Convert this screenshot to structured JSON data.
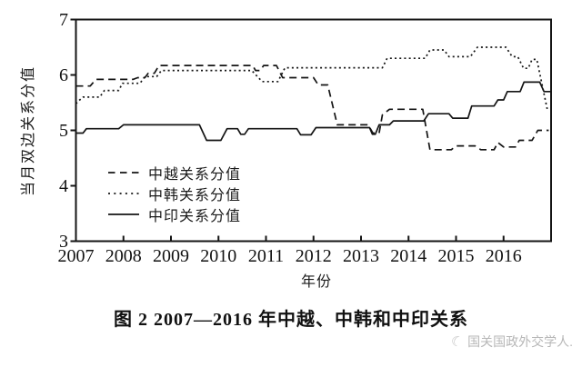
{
  "figure": {
    "caption": "图 2  2007—2016 年中越、中韩和中印关系"
  },
  "watermark": {
    "logo": "moon-icon",
    "text": "国关国政外交学人."
  },
  "chart_data": {
    "type": "line",
    "title": "",
    "xlabel": "年份",
    "ylabel": "当月双边关系分值",
    "xlim": [
      2007,
      2017
    ],
    "ylim": [
      3,
      7
    ],
    "x_ticks": [
      2007,
      2008,
      2009,
      2010,
      2011,
      2012,
      2013,
      2014,
      2015,
      2016
    ],
    "y_ticks": [
      3,
      4,
      5,
      6,
      7
    ],
    "grid": false,
    "legend_position": "inside-lower-left",
    "line_color": "#141414",
    "series": [
      {
        "name": "中越关系分值",
        "style": "dashed",
        "points": [
          [
            2007.0,
            5.8
          ],
          [
            2007.3,
            5.8
          ],
          [
            2007.42,
            5.92
          ],
          [
            2008.2,
            5.92
          ],
          [
            2008.3,
            5.95
          ],
          [
            2008.45,
            5.95
          ],
          [
            2008.52,
            6.03
          ],
          [
            2008.65,
            6.03
          ],
          [
            2008.75,
            6.17
          ],
          [
            2010.72,
            6.17
          ],
          [
            2010.78,
            6.08
          ],
          [
            2010.88,
            6.08
          ],
          [
            2010.95,
            6.17
          ],
          [
            2011.22,
            6.17
          ],
          [
            2011.35,
            5.95
          ],
          [
            2012.0,
            5.95
          ],
          [
            2012.1,
            5.82
          ],
          [
            2012.3,
            5.82
          ],
          [
            2012.5,
            5.1
          ],
          [
            2013.15,
            5.1
          ],
          [
            2013.25,
            4.95
          ],
          [
            2013.38,
            4.95
          ],
          [
            2013.45,
            5.28
          ],
          [
            2013.6,
            5.38
          ],
          [
            2014.3,
            5.38
          ],
          [
            2014.45,
            4.65
          ],
          [
            2014.9,
            4.65
          ],
          [
            2015.0,
            4.72
          ],
          [
            2015.4,
            4.72
          ],
          [
            2015.52,
            4.65
          ],
          [
            2015.8,
            4.65
          ],
          [
            2015.88,
            4.78
          ],
          [
            2016.0,
            4.7
          ],
          [
            2016.25,
            4.7
          ],
          [
            2016.33,
            4.82
          ],
          [
            2016.6,
            4.82
          ],
          [
            2016.72,
            5.0
          ],
          [
            2016.95,
            5.0
          ]
        ]
      },
      {
        "name": "中韩关系分值",
        "style": "dotted",
        "points": [
          [
            2007.0,
            5.48
          ],
          [
            2007.08,
            5.55
          ],
          [
            2007.15,
            5.6
          ],
          [
            2007.5,
            5.6
          ],
          [
            2007.6,
            5.72
          ],
          [
            2007.9,
            5.72
          ],
          [
            2007.98,
            5.85
          ],
          [
            2008.35,
            5.85
          ],
          [
            2008.45,
            5.97
          ],
          [
            2008.7,
            5.97
          ],
          [
            2008.8,
            6.08
          ],
          [
            2010.7,
            6.08
          ],
          [
            2010.92,
            5.88
          ],
          [
            2011.25,
            5.88
          ],
          [
            2011.4,
            6.13
          ],
          [
            2013.45,
            6.13
          ],
          [
            2013.55,
            6.3
          ],
          [
            2014.35,
            6.3
          ],
          [
            2014.45,
            6.45
          ],
          [
            2014.75,
            6.45
          ],
          [
            2014.85,
            6.33
          ],
          [
            2015.3,
            6.33
          ],
          [
            2015.45,
            6.5
          ],
          [
            2016.05,
            6.5
          ],
          [
            2016.18,
            6.33
          ],
          [
            2016.3,
            6.33
          ],
          [
            2016.42,
            6.12
          ],
          [
            2016.52,
            6.12
          ],
          [
            2016.6,
            6.28
          ],
          [
            2016.7,
            6.28
          ],
          [
            2016.92,
            5.38
          ]
        ]
      },
      {
        "name": "中印关系分值",
        "style": "solid",
        "points": [
          [
            2007.0,
            4.95
          ],
          [
            2007.15,
            4.95
          ],
          [
            2007.22,
            5.03
          ],
          [
            2007.9,
            5.03
          ],
          [
            2008.0,
            5.1
          ],
          [
            2009.6,
            5.1
          ],
          [
            2009.75,
            4.82
          ],
          [
            2010.05,
            4.82
          ],
          [
            2010.18,
            5.03
          ],
          [
            2010.4,
            5.03
          ],
          [
            2010.47,
            4.93
          ],
          [
            2010.55,
            4.93
          ],
          [
            2010.63,
            5.03
          ],
          [
            2011.65,
            5.03
          ],
          [
            2011.73,
            4.92
          ],
          [
            2011.95,
            4.92
          ],
          [
            2012.05,
            5.05
          ],
          [
            2013.18,
            5.05
          ],
          [
            2013.24,
            4.93
          ],
          [
            2013.3,
            4.93
          ],
          [
            2013.38,
            5.1
          ],
          [
            2013.6,
            5.1
          ],
          [
            2013.68,
            5.17
          ],
          [
            2014.32,
            5.17
          ],
          [
            2014.42,
            5.3
          ],
          [
            2014.85,
            5.3
          ],
          [
            2014.93,
            5.22
          ],
          [
            2015.25,
            5.22
          ],
          [
            2015.33,
            5.44
          ],
          [
            2015.8,
            5.44
          ],
          [
            2015.88,
            5.55
          ],
          [
            2016.0,
            5.55
          ],
          [
            2016.08,
            5.7
          ],
          [
            2016.35,
            5.7
          ],
          [
            2016.43,
            5.87
          ],
          [
            2016.76,
            5.87
          ],
          [
            2016.85,
            5.7
          ],
          [
            2016.98,
            5.7
          ]
        ]
      }
    ]
  }
}
